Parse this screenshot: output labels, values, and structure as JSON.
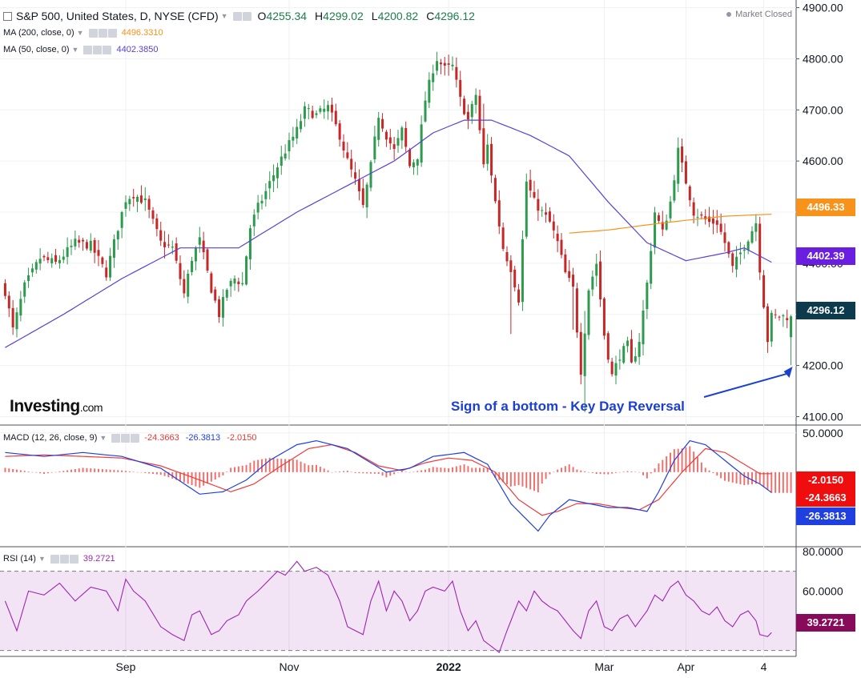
{
  "header": {
    "title": "S&P 500, United States, D, NYSE (CFD)",
    "ohlc": [
      {
        "label": "O",
        "value": "4255.34"
      },
      {
        "label": "H",
        "value": "4299.02"
      },
      {
        "label": "L",
        "value": "4200.82"
      },
      {
        "label": "C",
        "value": "4296.12"
      }
    ],
    "market_status": "Market Closed"
  },
  "indicators": {
    "ma200": {
      "label": "MA (200, close, 0)",
      "value": "4496.3310",
      "color": "#f7931a"
    },
    "ma50": {
      "label": "MA (50, close, 0)",
      "value": "4402.3850",
      "color": "#5b3fd6"
    },
    "macd": {
      "label": "MACD (12, 26, close, 9)",
      "hist": "-24.3663",
      "macd": "-26.3813",
      "signal": "-2.0150"
    },
    "rsi": {
      "label": "RSI (14)",
      "value": "39.2721",
      "color": "#9c27b0"
    }
  },
  "logo": {
    "brand": "Investing",
    "suffix": ".com"
  },
  "annotation": "Sign of a bottom - Key Day Reversal",
  "price_labels": {
    "ma200": {
      "text": "4496.33",
      "color": "#f7931a"
    },
    "ma50": {
      "text": "4402.39",
      "color": "#6a1ee0"
    },
    "close": {
      "text": "4296.12",
      "color": "#0d3b4e"
    },
    "macd_signal": {
      "text": "-2.0150",
      "color": "#f00d0d"
    },
    "macd_hist": {
      "text": "-24.3663",
      "color": "#f00d0d"
    },
    "macd_line": {
      "text": "-26.3813",
      "color": "#1f3fe0"
    },
    "rsi": {
      "text": "39.2721",
      "color": "#870a5b"
    }
  },
  "colors": {
    "up": "#2e9a4e",
    "down": "#c62828",
    "grid": "#eef0f3",
    "axis": "#787b86"
  },
  "chart_data": [
    {
      "type": "candlestick",
      "title": "S&P 500, United States, D, NYSE (CFD)",
      "y_ticks": [
        4100,
        4200,
        4300,
        4400,
        4500,
        4600,
        4700,
        4800,
        4900
      ],
      "ylim": [
        4085,
        4915
      ],
      "x_ticks": [
        "Sep",
        "Nov",
        "2022",
        "Mar",
        "Apr",
        "4"
      ],
      "x_tick_positions": [
        31,
        73,
        114,
        154,
        175,
        195
      ],
      "n_days": 203,
      "anchors": [
        [
          0,
          4345
        ],
        [
          2,
          4270
        ],
        [
          5,
          4355
        ],
        [
          9,
          4410
        ],
        [
          13,
          4400
        ],
        [
          18,
          4440
        ],
        [
          22,
          4435
        ],
        [
          26,
          4380
        ],
        [
          29,
          4470
        ],
        [
          31,
          4525
        ],
        [
          33,
          4535
        ],
        [
          36,
          4520
        ],
        [
          40,
          4440
        ],
        [
          43,
          4430
        ],
        [
          46,
          4340
        ],
        [
          48,
          4410
        ],
        [
          50,
          4445
        ],
        [
          53,
          4350
        ],
        [
          55,
          4300
        ],
        [
          57,
          4350
        ],
        [
          59,
          4370
        ],
        [
          61,
          4360
        ],
        [
          63,
          4470
        ],
        [
          65,
          4510
        ],
        [
          67,
          4540
        ],
        [
          70,
          4590
        ],
        [
          72,
          4620
        ],
        [
          75,
          4660
        ],
        [
          77,
          4700
        ],
        [
          80,
          4690
        ],
        [
          83,
          4705
        ],
        [
          86,
          4650
        ],
        [
          88,
          4600
        ],
        [
          90,
          4560
        ],
        [
          92,
          4510
        ],
        [
          94,
          4590
        ],
        [
          96,
          4690
        ],
        [
          98,
          4650
        ],
        [
          100,
          4620
        ],
        [
          102,
          4660
        ],
        [
          104,
          4590
        ],
        [
          106,
          4610
        ],
        [
          108,
          4720
        ],
        [
          110,
          4780
        ],
        [
          111,
          4800
        ],
        [
          113,
          4780
        ],
        [
          115,
          4785
        ],
        [
          117,
          4720
        ],
        [
          119,
          4680
        ],
        [
          121,
          4730
        ],
        [
          123,
          4590
        ],
        [
          124,
          4630
        ],
        [
          126,
          4520
        ],
        [
          128,
          4430
        ],
        [
          130,
          4390
        ],
        [
          132,
          4330
        ],
        [
          134,
          4560
        ],
        [
          136,
          4520
        ],
        [
          138,
          4500
        ],
        [
          140,
          4480
        ],
        [
          142,
          4440
        ],
        [
          144,
          4380
        ],
        [
          146,
          4350
        ],
        [
          148,
          4190
        ],
        [
          150,
          4350
        ],
        [
          152,
          4400
        ],
        [
          154,
          4260
        ],
        [
          156,
          4180
        ],
        [
          158,
          4220
        ],
        [
          160,
          4240
        ],
        [
          161,
          4200
        ],
        [
          163,
          4250
        ],
        [
          165,
          4360
        ],
        [
          167,
          4500
        ],
        [
          169,
          4460
        ],
        [
          171,
          4520
        ],
        [
          173,
          4620
        ],
        [
          175,
          4560
        ],
        [
          177,
          4500
        ],
        [
          179,
          4490
        ],
        [
          181,
          4480
        ],
        [
          183,
          4480
        ],
        [
          185,
          4440
        ],
        [
          187,
          4390
        ],
        [
          189,
          4420
        ],
        [
          191,
          4450
        ],
        [
          193,
          4480
        ],
        [
          194,
          4390
        ],
        [
          196,
          4250
        ],
        [
          197,
          4296
        ]
      ],
      "series": [
        {
          "name": "MA (200, close, 0)",
          "anchors": [
            [
              145,
              4459
            ],
            [
              155,
              4465
            ],
            [
              165,
              4475
            ],
            [
              175,
              4484
            ],
            [
              185,
              4492
            ],
            [
              197,
              4496
            ]
          ]
        },
        {
          "name": "MA (50, close, 0)",
          "anchors": [
            [
              0,
              4235
            ],
            [
              15,
              4300
            ],
            [
              30,
              4370
            ],
            [
              45,
              4430
            ],
            [
              60,
              4430
            ],
            [
              75,
              4500
            ],
            [
              90,
              4560
            ],
            [
              100,
              4600
            ],
            [
              110,
              4655
            ],
            [
              118,
              4680
            ],
            [
              125,
              4680
            ],
            [
              135,
              4650
            ],
            [
              145,
              4610
            ],
            [
              155,
              4520
            ],
            [
              165,
              4440
            ],
            [
              175,
              4405
            ],
            [
              185,
              4420
            ],
            [
              190,
              4430
            ],
            [
              197,
              4402
            ]
          ]
        }
      ],
      "last": {
        "open": 4255.34,
        "high": 4299.02,
        "low": 4200.82,
        "close": 4296.12
      }
    },
    {
      "type": "line",
      "title": "MACD (12, 26, close, 9)",
      "y_ticks": [
        50
      ],
      "ylim": [
        -95,
        60
      ],
      "series": [
        {
          "name": "MACD",
          "color": "#1f3fe0",
          "anchors": [
            [
              0,
              25
            ],
            [
              10,
              20
            ],
            [
              20,
              25
            ],
            [
              30,
              20
            ],
            [
              40,
              5
            ],
            [
              50,
              -28
            ],
            [
              56,
              -25
            ],
            [
              62,
              -10
            ],
            [
              68,
              15
            ],
            [
              75,
              35
            ],
            [
              80,
              40
            ],
            [
              88,
              30
            ],
            [
              93,
              15
            ],
            [
              98,
              0
            ],
            [
              104,
              5
            ],
            [
              110,
              20
            ],
            [
              118,
              25
            ],
            [
              124,
              10
            ],
            [
              130,
              -40
            ],
            [
              134,
              -60
            ],
            [
              137,
              -75
            ],
            [
              140,
              -55
            ],
            [
              145,
              -35
            ],
            [
              150,
              -40
            ],
            [
              155,
              -45
            ],
            [
              160,
              -45
            ],
            [
              165,
              -50
            ],
            [
              168,
              -25
            ],
            [
              172,
              15
            ],
            [
              176,
              40
            ],
            [
              180,
              35
            ],
            [
              185,
              15
            ],
            [
              190,
              -5
            ],
            [
              194,
              -15
            ],
            [
              197,
              -26
            ]
          ]
        },
        {
          "name": "Signal",
          "color": "#ef3a3a",
          "anchors": [
            [
              0,
              20
            ],
            [
              10,
              22
            ],
            [
              20,
              20
            ],
            [
              30,
              18
            ],
            [
              40,
              8
            ],
            [
              50,
              -10
            ],
            [
              58,
              -25
            ],
            [
              64,
              -15
            ],
            [
              70,
              5
            ],
            [
              78,
              30
            ],
            [
              84,
              35
            ],
            [
              90,
              25
            ],
            [
              96,
              8
            ],
            [
              102,
              2
            ],
            [
              108,
              12
            ],
            [
              114,
              18
            ],
            [
              120,
              15
            ],
            [
              126,
              0
            ],
            [
              132,
              -35
            ],
            [
              138,
              -55
            ],
            [
              142,
              -50
            ],
            [
              147,
              -40
            ],
            [
              152,
              -40
            ],
            [
              158,
              -45
            ],
            [
              163,
              -48
            ],
            [
              168,
              -35
            ],
            [
              174,
              0
            ],
            [
              180,
              30
            ],
            [
              185,
              25
            ],
            [
              190,
              10
            ],
            [
              194,
              -2
            ],
            [
              197,
              -2
            ]
          ]
        }
      ]
    },
    {
      "type": "line",
      "title": "RSI (14)",
      "y_ticks": [
        60,
        80
      ],
      "ylim": [
        27,
        82
      ],
      "bands": [
        70,
        30
      ],
      "series": [
        {
          "name": "RSI",
          "color": "#9c27b0",
          "anchors": [
            [
              0,
              55
            ],
            [
              3,
              40
            ],
            [
              6,
              60
            ],
            [
              10,
              58
            ],
            [
              14,
              64
            ],
            [
              18,
              55
            ],
            [
              22,
              62
            ],
            [
              26,
              60
            ],
            [
              29,
              50
            ],
            [
              31,
              66
            ],
            [
              33,
              60
            ],
            [
              36,
              55
            ],
            [
              40,
              42
            ],
            [
              43,
              38
            ],
            [
              46,
              35
            ],
            [
              48,
              48
            ],
            [
              50,
              50
            ],
            [
              53,
              38
            ],
            [
              55,
              40
            ],
            [
              57,
              45
            ],
            [
              60,
              48
            ],
            [
              62,
              55
            ],
            [
              65,
              60
            ],
            [
              68,
              66
            ],
            [
              70,
              70
            ],
            [
              72,
              68
            ],
            [
              75,
              75
            ],
            [
              77,
              70
            ],
            [
              80,
              72
            ],
            [
              83,
              68
            ],
            [
              86,
              55
            ],
            [
              88,
              42
            ],
            [
              90,
              40
            ],
            [
              92,
              38
            ],
            [
              94,
              55
            ],
            [
              96,
              65
            ],
            [
              98,
              50
            ],
            [
              100,
              60
            ],
            [
              102,
              55
            ],
            [
              104,
              45
            ],
            [
              106,
              50
            ],
            [
              108,
              60
            ],
            [
              110,
              62
            ],
            [
              113,
              60
            ],
            [
              115,
              65
            ],
            [
              117,
              50
            ],
            [
              119,
              40
            ],
            [
              121,
              45
            ],
            [
              123,
              35
            ],
            [
              125,
              32
            ],
            [
              127,
              29
            ],
            [
              129,
              40
            ],
            [
              132,
              55
            ],
            [
              134,
              50
            ],
            [
              136,
              60
            ],
            [
              138,
              55
            ],
            [
              140,
              52
            ],
            [
              142,
              50
            ],
            [
              144,
              45
            ],
            [
              146,
              40
            ],
            [
              148,
              36
            ],
            [
              150,
              50
            ],
            [
              152,
              55
            ],
            [
              154,
              42
            ],
            [
              156,
              40
            ],
            [
              158,
              46
            ],
            [
              160,
              48
            ],
            [
              162,
              42
            ],
            [
              165,
              50
            ],
            [
              167,
              58
            ],
            [
              169,
              55
            ],
            [
              171,
              62
            ],
            [
              173,
              65
            ],
            [
              175,
              58
            ],
            [
              177,
              55
            ],
            [
              179,
              50
            ],
            [
              181,
              48
            ],
            [
              183,
              52
            ],
            [
              185,
              45
            ],
            [
              187,
              42
            ],
            [
              189,
              48
            ],
            [
              191,
              50
            ],
            [
              193,
              45
            ],
            [
              194,
              38
            ],
            [
              196,
              37
            ],
            [
              197,
              39
            ]
          ]
        }
      ]
    }
  ]
}
